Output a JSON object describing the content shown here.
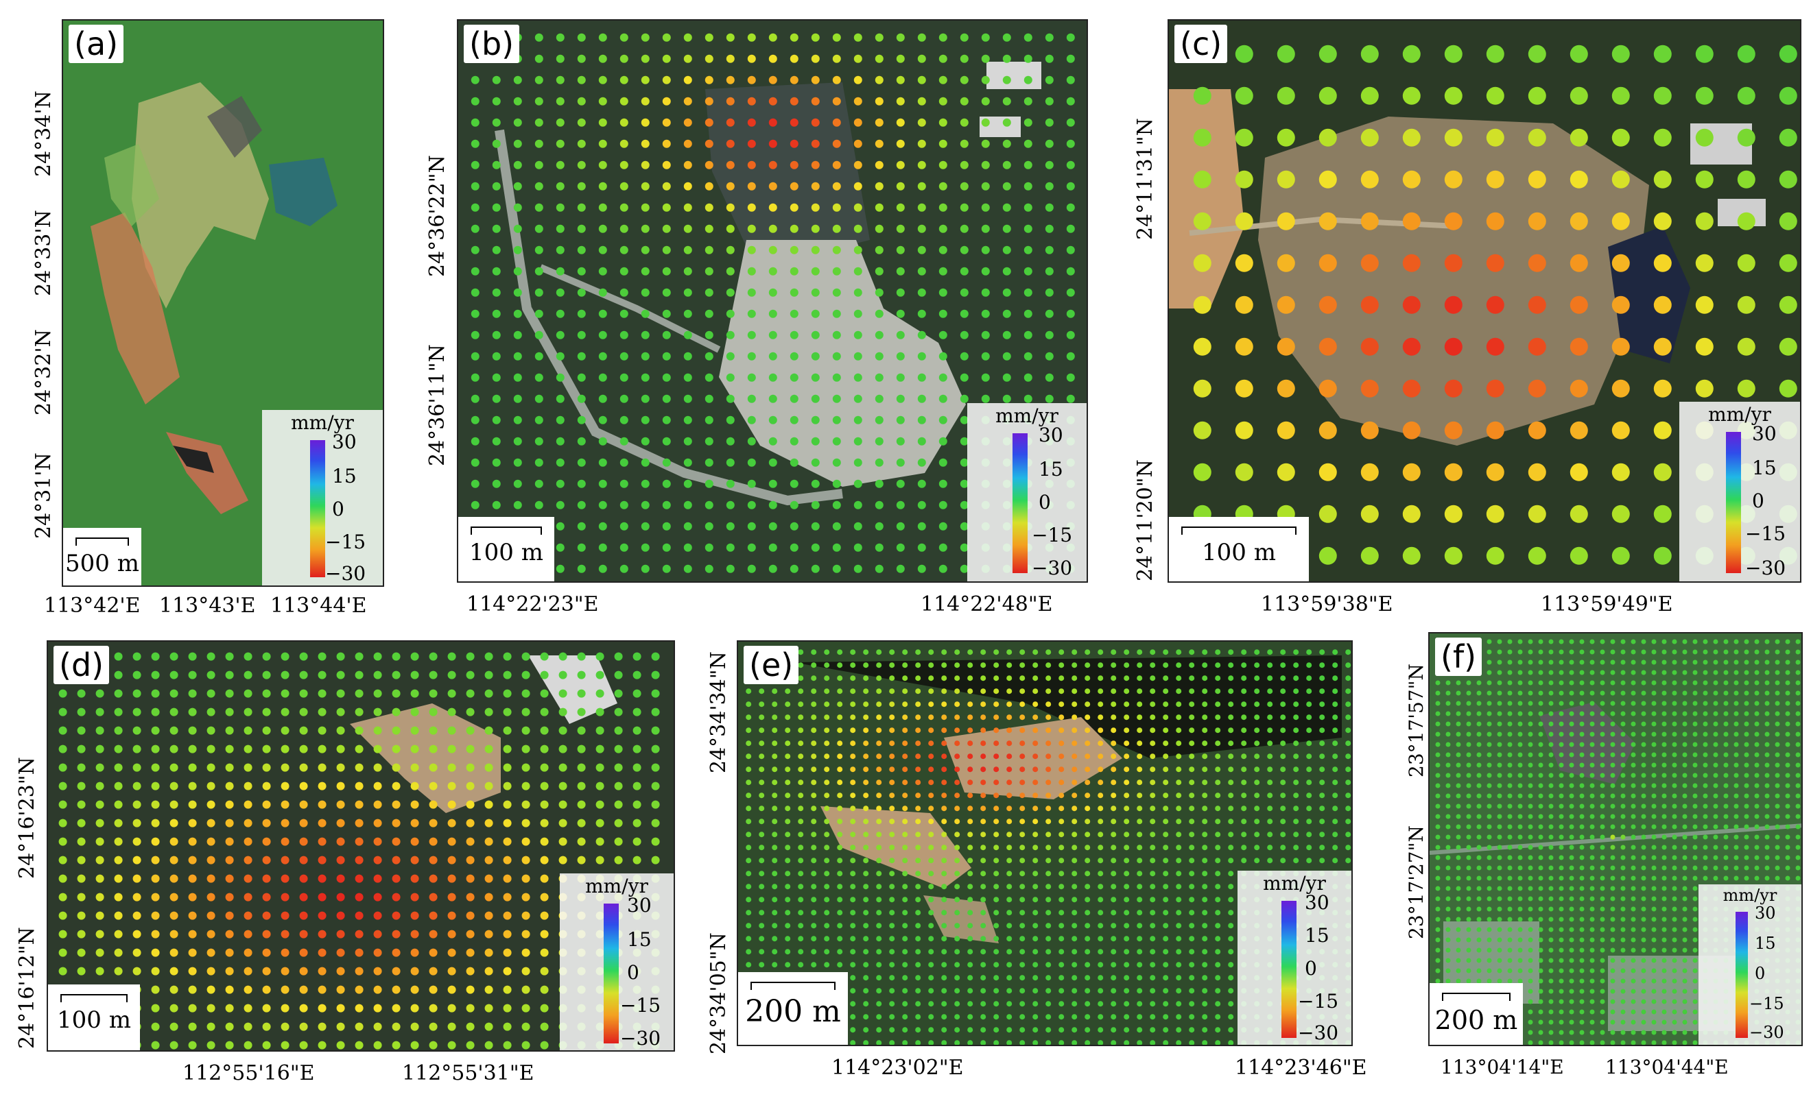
{
  "panels": [
    {
      "id": "a",
      "label": "(a)",
      "scale": "500 m",
      "legend": {
        "unit": "mm/yr",
        "ticks": [
          "30",
          "15",
          "0",
          "−15",
          "−30"
        ]
      },
      "x_ticks": [
        "113°42'E",
        "113°43'E",
        "113°44'E"
      ],
      "y_ticks": [
        "24°34'N",
        "24°33'N",
        "24°32'N",
        "24°31'N"
      ]
    },
    {
      "id": "b",
      "label": "(b)",
      "scale": "100 m",
      "legend": {
        "unit": "mm/yr",
        "ticks": [
          "30",
          "15",
          "0",
          "−15",
          "−30"
        ]
      },
      "x_ticks": [
        "114°22'23\"E",
        "114°22'48\"E"
      ],
      "y_ticks": [
        "24°36'22\"N",
        "24°36'11\"N"
      ]
    },
    {
      "id": "c",
      "label": "(c)",
      "scale": "100 m",
      "legend": {
        "unit": "mm/yr",
        "ticks": [
          "30",
          "15",
          "0",
          "−15",
          "−30"
        ]
      },
      "x_ticks": [
        "113°59'38\"E",
        "113°59'49\"E"
      ],
      "y_ticks": [
        "24°11'31\"N",
        "24°11'20\"N"
      ]
    },
    {
      "id": "d",
      "label": "(d)",
      "scale": "100 m",
      "legend": {
        "unit": "mm/yr",
        "ticks": [
          "30",
          "15",
          "0",
          "−15",
          "−30"
        ]
      },
      "x_ticks": [
        "112°55'16\"E",
        "112°55'31\"E"
      ],
      "y_ticks": [
        "24°16'23\"N",
        "24°16'12\"N"
      ]
    },
    {
      "id": "e",
      "label": "(e)",
      "scale": "200 m",
      "legend": {
        "unit": "mm/yr",
        "ticks": [
          "30",
          "15",
          "0",
          "−15",
          "−30"
        ]
      },
      "x_ticks": [
        "114°23'02\"E",
        "114°23'46\"E"
      ],
      "y_ticks": [
        "24°34'34\"N",
        "24°34'05\"N"
      ]
    },
    {
      "id": "f",
      "label": "(f)",
      "scale": "200 m",
      "legend": {
        "unit": "mm/yr",
        "ticks": [
          "30",
          "15",
          "0",
          "−15",
          "−30"
        ]
      },
      "x_ticks": [
        "113°04'14\"E",
        "113°04'44\"E"
      ],
      "y_ticks": [
        "23°17'57\"N",
        "23°17'27\"N"
      ]
    }
  ],
  "colors": {
    "ground": "#2f5a2a",
    "deform_low": "#e0201d",
    "deform_mid": "#f3a020",
    "stable": "#5bd13a"
  }
}
